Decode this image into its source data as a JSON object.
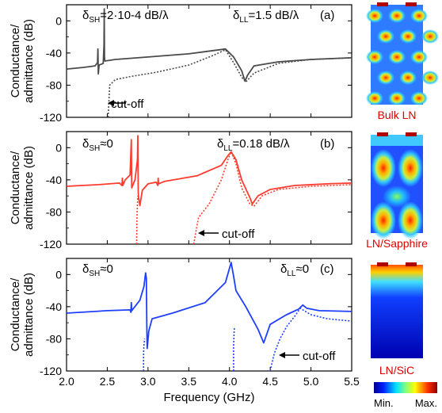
{
  "chart_data": [
    {
      "type": "line",
      "panel_label": "(a)",
      "ylabel_lines": [
        "Conductance/",
        "admittance (dB)"
      ],
      "xlabel": "",
      "xlim": [
        2.0,
        5.5
      ],
      "ylim": [
        -120,
        20
      ],
      "xticks": [
        2.0,
        2.5,
        3.0,
        3.5,
        4.0,
        4.5,
        5.0,
        5.5
      ],
      "yticks": [
        0,
        -40,
        -80,
        -120
      ],
      "annotations": {
        "shear": {
          "base": "δ",
          "sub": "SH",
          "rest": "=2·10-4 dB/λ"
        },
        "longitudinal": {
          "base": "δ",
          "sub": "LL",
          "rest": "=1.5 dB/λ"
        },
        "cutoff": "cut-off"
      },
      "series": [
        {
          "style": "solid",
          "color": "#4a4a4a",
          "x": [
            2.0,
            2.2,
            2.35,
            2.38,
            2.385,
            2.39,
            2.4,
            2.45,
            2.46,
            2.463,
            2.466,
            2.47,
            2.6,
            3.0,
            3.5,
            3.8,
            3.95,
            4.05,
            4.15,
            4.19,
            4.22,
            4.3,
            4.6,
            5.0,
            5.5
          ],
          "y": [
            -60,
            -58,
            -56,
            -52,
            -35,
            -66,
            -55,
            -53,
            -30,
            15,
            -45,
            -50,
            -48,
            -45,
            -41,
            -37,
            -35,
            -45,
            -62,
            -75,
            -68,
            -56,
            -51,
            -48,
            -46
          ]
        },
        {
          "style": "dotted",
          "color": "#4a4a4a",
          "x": [
            2.51,
            2.53,
            2.6,
            2.8,
            3.1,
            3.5,
            3.8,
            3.95,
            4.05,
            4.15,
            4.2,
            4.3,
            4.6,
            5.0,
            5.5
          ],
          "y": [
            -120,
            -80,
            -73,
            -69,
            -64,
            -55,
            -43,
            -36,
            -52,
            -70,
            -76,
            -65,
            -53,
            -48,
            -46
          ]
        }
      ]
    },
    {
      "type": "line",
      "panel_label": "(b)",
      "ylabel_lines": [
        "Conductance/",
        "admittance (dB)"
      ],
      "xlabel": "",
      "xlim": [
        2.0,
        5.5
      ],
      "ylim": [
        -120,
        20
      ],
      "xticks": [
        2.0,
        2.5,
        3.0,
        3.5,
        4.0,
        4.5,
        5.0,
        5.5
      ],
      "yticks": [
        0,
        -40,
        -80,
        -120
      ],
      "annotations": {
        "shear": {
          "base": "δ",
          "sub": "SH",
          "rest": "≈0"
        },
        "longitudinal": {
          "base": "δ",
          "sub": "LL",
          "rest": "=0.18 dB/λ"
        },
        "cutoff": "cut-off"
      },
      "series": [
        {
          "style": "solid",
          "color": "#ff3b30",
          "x": [
            2.0,
            2.4,
            2.65,
            2.68,
            2.685,
            2.69,
            2.72,
            2.78,
            2.795,
            2.8,
            2.84,
            2.87,
            2.875,
            2.88,
            2.885,
            2.9,
            2.93,
            3.0,
            3.1,
            3.12,
            3.125,
            3.13,
            3.2,
            3.6,
            3.9,
            3.98,
            4.02,
            4.08,
            4.15,
            4.25,
            4.28,
            4.35,
            4.5,
            4.8,
            5.2,
            5.5
          ],
          "y": [
            -48,
            -46,
            -44,
            -47,
            -38,
            -47,
            -40,
            -34,
            10,
            -50,
            -40,
            -15,
            15,
            -55,
            -62,
            -72,
            -53,
            -45,
            -43,
            -47,
            -38,
            -45,
            -42,
            -35,
            -22,
            -10,
            -5,
            -15,
            -40,
            -62,
            -70,
            -60,
            -52,
            -47,
            -45,
            -44
          ]
        },
        {
          "style": "dotted",
          "color": "#ff3b30",
          "x": [
            2.86,
            2.862,
            2.865,
            2.87,
            2.875
          ],
          "y": [
            -120,
            -100,
            -85,
            -70,
            -60
          ]
        },
        {
          "style": "dotted",
          "color": "#ff3b30",
          "x": [
            3.56,
            3.62,
            3.75,
            3.9,
            3.98,
            4.02,
            4.08,
            4.15,
            4.25,
            4.3,
            4.4,
            4.6,
            5.0,
            5.5
          ],
          "y": [
            -120,
            -87,
            -70,
            -40,
            -15,
            -5,
            -20,
            -50,
            -70,
            -73,
            -60,
            -52,
            -48,
            -46
          ]
        }
      ]
    },
    {
      "type": "line",
      "panel_label": "(c)",
      "ylabel_lines": [
        "Conductance/",
        "admittance (dB)"
      ],
      "xlabel": "Frequency (GHz)",
      "xlim": [
        2.0,
        5.5
      ],
      "ylim": [
        -120,
        20
      ],
      "xticks": [
        2.0,
        2.5,
        3.0,
        3.5,
        4.0,
        4.5,
        5.0,
        5.5
      ],
      "xticklabels": [
        "2.0",
        "2.5",
        "3.0",
        "3.5",
        "4.0",
        "4.5",
        "5.0",
        "5.5"
      ],
      "yticks": [
        0,
        -40,
        -80,
        -120
      ],
      "annotations": {
        "shear": {
          "base": "δ",
          "sub": "SH",
          "rest": "≈0"
        },
        "longitudinal": {
          "base": "δ",
          "sub": "LL",
          "rest": "≈0"
        },
        "cutoff": "cut-off"
      },
      "series": [
        {
          "style": "solid",
          "color": "#1f3fff",
          "x": [
            2.0,
            2.5,
            2.78,
            2.79,
            2.795,
            2.8,
            2.9,
            2.95,
            2.97,
            2.98,
            2.985,
            2.99,
            3.01,
            3.05,
            3.3,
            3.7,
            3.95,
            4.02,
            4.05,
            4.08,
            4.2,
            4.35,
            4.42,
            4.5,
            4.7,
            4.85,
            4.9,
            4.95,
            5.1,
            5.5
          ],
          "y": [
            -48,
            -45,
            -44,
            -47,
            -35,
            -45,
            -32,
            -15,
            2,
            -5,
            -60,
            -92,
            -70,
            -55,
            -48,
            -35,
            -10,
            15,
            -2,
            -20,
            -40,
            -68,
            -85,
            -62,
            -50,
            -43,
            -38,
            -42,
            -45,
            -46
          ]
        },
        {
          "style": "dotted",
          "color": "#1f3fff",
          "x": [
            2.945,
            2.945,
            2.95,
            2.96
          ],
          "y": [
            -120,
            -100,
            -88,
            -80
          ]
        },
        {
          "style": "dotted",
          "color": "#1f3fff",
          "x": [
            4.05,
            4.05,
            4.055,
            4.06
          ],
          "y": [
            -120,
            -90,
            -75,
            -65
          ]
        },
        {
          "style": "dotted",
          "color": "#1f3fff",
          "x": [
            4.5,
            4.55,
            4.62,
            4.7,
            4.8,
            4.87,
            4.9,
            5.0,
            5.2,
            5.5
          ],
          "y": [
            -120,
            -98,
            -80,
            -65,
            -52,
            -42,
            -44,
            -50,
            -55,
            -58
          ]
        }
      ]
    }
  ],
  "side_images": {
    "labels": [
      "Bulk LN",
      "LN/Sapphire",
      "LN/SiC"
    ],
    "colorbar": {
      "min_label": "Min.",
      "max_label": "Max."
    }
  }
}
